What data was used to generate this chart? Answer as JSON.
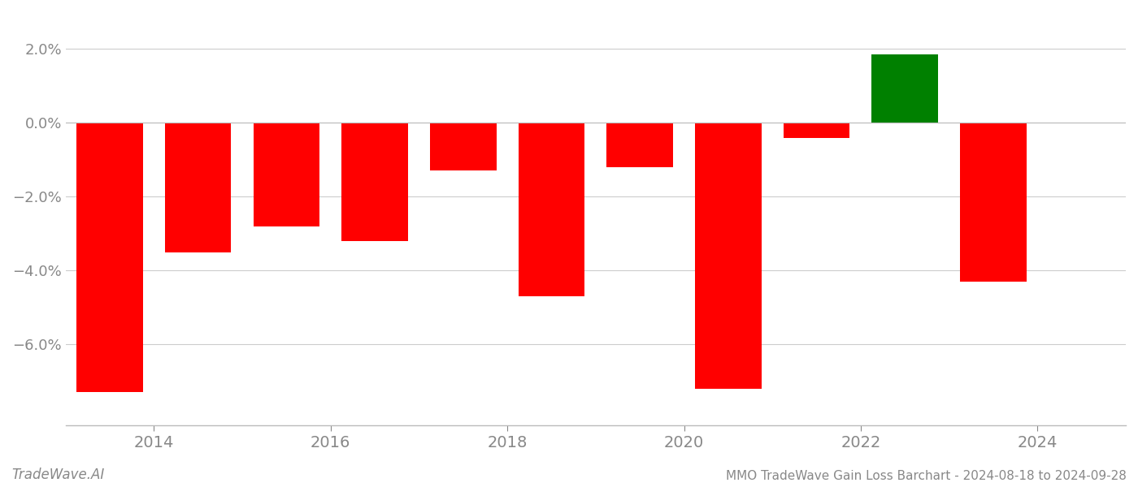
{
  "years": [
    2013.5,
    2014.5,
    2015.5,
    2016.5,
    2017.5,
    2018.5,
    2019.5,
    2020.5,
    2021.5,
    2022.5,
    2023.5
  ],
  "values": [
    -0.073,
    -0.035,
    -0.028,
    -0.032,
    -0.013,
    -0.047,
    -0.012,
    -0.072,
    -0.004,
    0.0185,
    -0.043
  ],
  "colors": [
    "#ff0000",
    "#ff0000",
    "#ff0000",
    "#ff0000",
    "#ff0000",
    "#ff0000",
    "#ff0000",
    "#ff0000",
    "#ff0000",
    "#008000",
    "#ff0000"
  ],
  "title": "MMO TradeWave Gain Loss Barchart - 2024-08-18 to 2024-09-28",
  "watermark": "TradeWave.AI",
  "ylim_min": -0.082,
  "ylim_max": 0.03,
  "background_color": "#ffffff",
  "grid_color": "#cccccc",
  "axis_label_color": "#888888",
  "bar_width": 0.75,
  "xticks": [
    2014,
    2016,
    2018,
    2020,
    2022,
    2024
  ],
  "yticks": [
    -0.06,
    -0.04,
    -0.02,
    0.0,
    0.02
  ],
  "xlim_min": 2013.0,
  "xlim_max": 2025.0
}
